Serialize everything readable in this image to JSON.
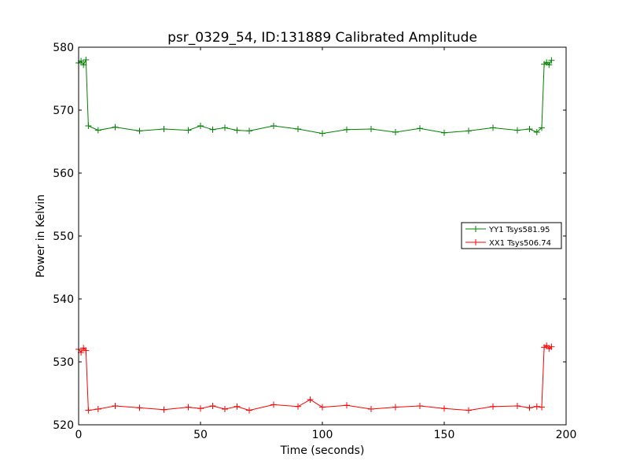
{
  "chart_data": {
    "type": "line",
    "title": "psr_0329_54, ID:131889 Calibrated Amplitude",
    "xlabel": "Time (seconds)",
    "ylabel": "Power in Kelvin",
    "xlim": [
      0,
      200
    ],
    "ylim": [
      520,
      580
    ],
    "xticks": [
      "0",
      "50",
      "100",
      "150",
      "200"
    ],
    "yticks": [
      "520",
      "530",
      "540",
      "550",
      "560",
      "570",
      "580"
    ],
    "grid": false,
    "legend_position": "right",
    "marker": "+",
    "series": [
      {
        "name": "YY1 Tsys581.95",
        "color": "#008000",
        "x": [
          0,
          1,
          2,
          3,
          4,
          8,
          15,
          25,
          35,
          45,
          50,
          55,
          60,
          65,
          70,
          80,
          90,
          100,
          110,
          120,
          130,
          140,
          150,
          160,
          170,
          180,
          185,
          188,
          190,
          191,
          192,
          193,
          194
        ],
        "y": [
          577.5,
          577.8,
          577.2,
          578.0,
          567.5,
          566.8,
          567.3,
          566.7,
          567.0,
          566.8,
          567.5,
          566.9,
          567.2,
          566.8,
          566.7,
          567.5,
          567.0,
          566.3,
          566.9,
          567.0,
          566.5,
          567.1,
          566.4,
          566.7,
          567.2,
          566.8,
          567.0,
          566.5,
          567.2,
          577.3,
          577.6,
          577.2,
          577.9
        ]
      },
      {
        "name": "XX1 Tsys506.74",
        "color": "#ff0000",
        "x": [
          0,
          1,
          2,
          3,
          4,
          8,
          15,
          25,
          35,
          45,
          50,
          55,
          60,
          65,
          70,
          80,
          90,
          95,
          100,
          110,
          120,
          130,
          140,
          150,
          160,
          170,
          180,
          185,
          188,
          190,
          191,
          192,
          193,
          194
        ],
        "y": [
          532.0,
          531.5,
          532.2,
          531.8,
          522.3,
          522.5,
          523.0,
          522.7,
          522.4,
          522.8,
          522.6,
          523.0,
          522.5,
          522.9,
          522.3,
          523.2,
          522.9,
          524.0,
          522.8,
          523.1,
          522.5,
          522.8,
          523.0,
          522.6,
          522.3,
          522.9,
          523.0,
          522.7,
          522.9,
          522.8,
          532.3,
          532.6,
          532.1,
          532.4
        ]
      }
    ]
  }
}
